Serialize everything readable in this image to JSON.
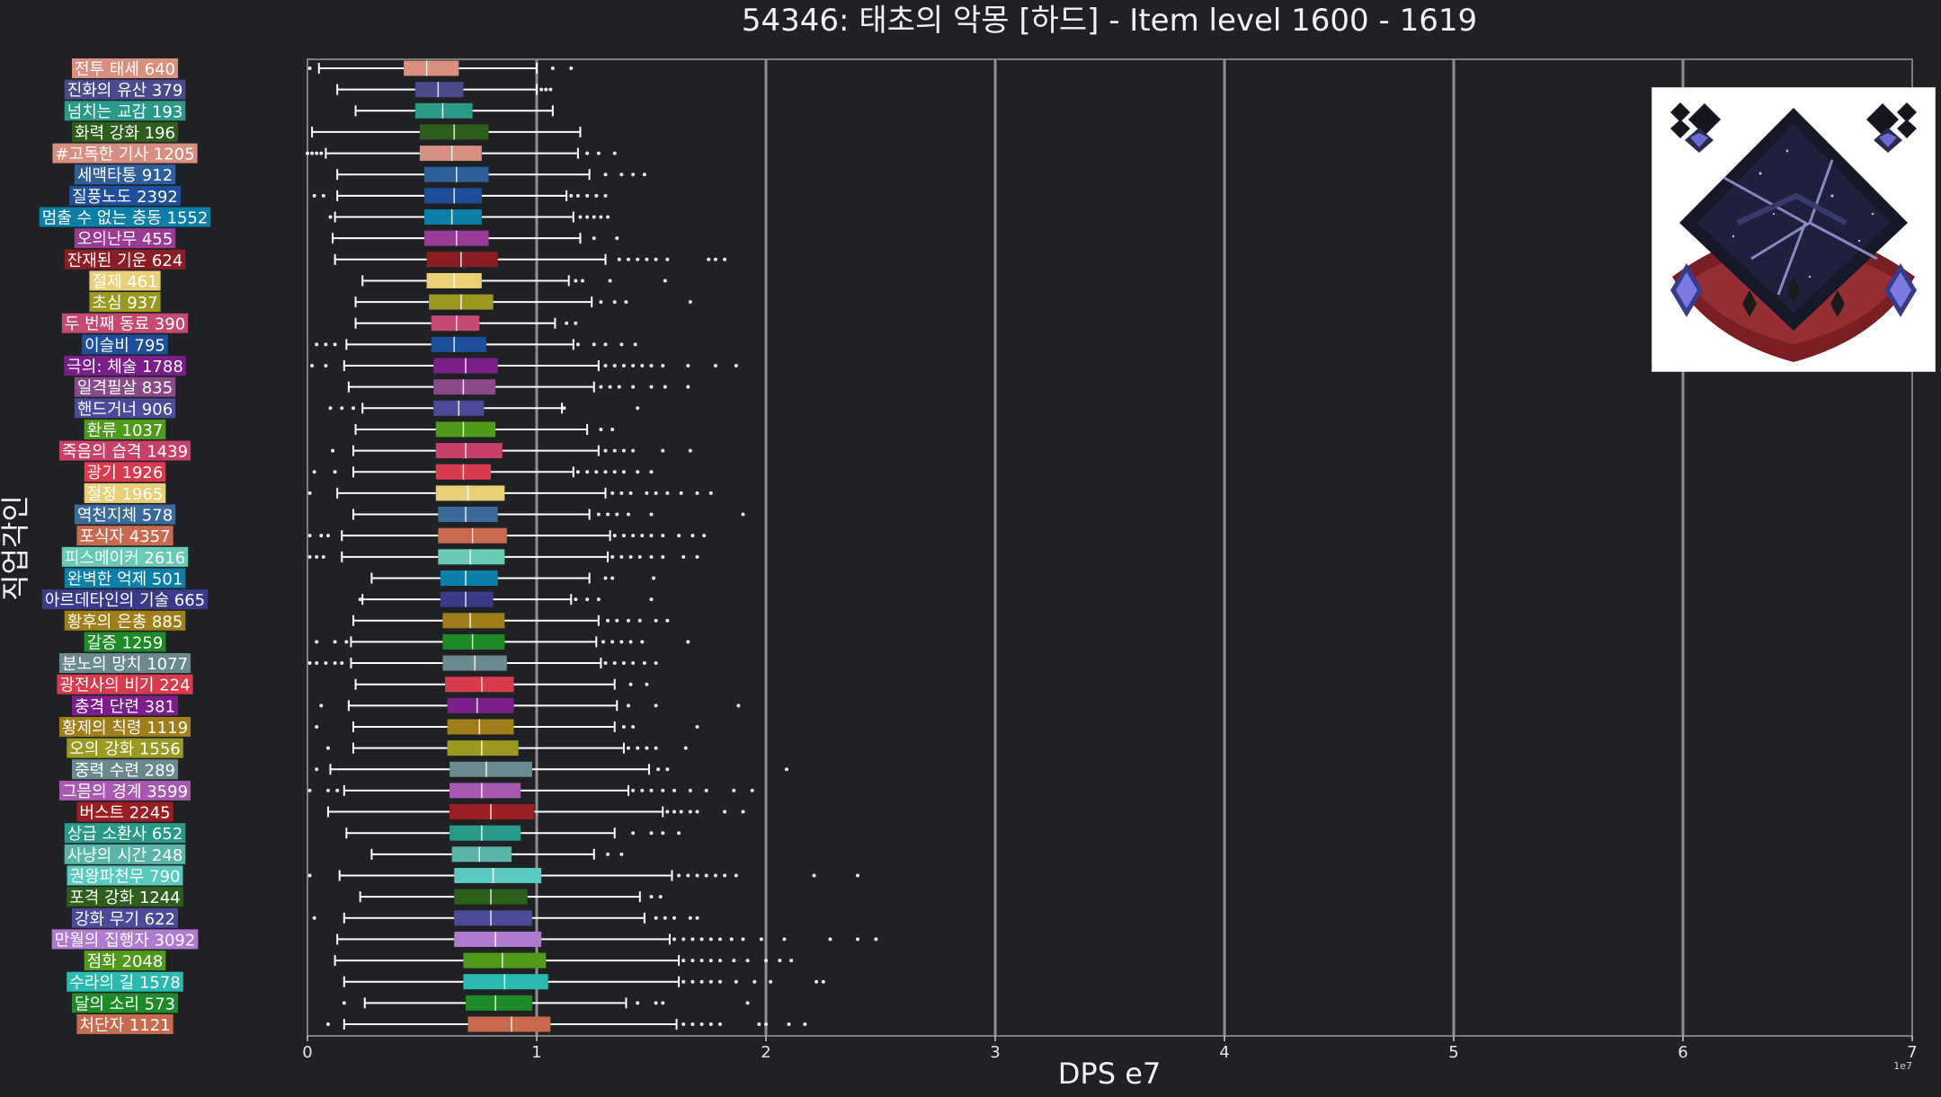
{
  "chart_data": {
    "type": "box",
    "orientation": "horizontal",
    "title": "54346: 태초의 악몽 [하드] - Item level 1600 - 1619",
    "xlabel": "DPS e7",
    "ylabel": "직업각인",
    "x_offset_label": "1e7",
    "xlim": [
      0,
      7
    ],
    "xticks": [
      "0",
      "1",
      "2",
      "3",
      "4",
      "5",
      "6",
      "7"
    ],
    "grid": "vertical",
    "background": "#202124",
    "categories": [
      {
        "label": "전투 태세 640",
        "color": "#d98e7e",
        "whisker": [
          0.05,
          1.0
        ],
        "box": [
          0.42,
          0.66
        ],
        "median": 0.52,
        "outliers": [
          0.01,
          1.07,
          1.15
        ]
      },
      {
        "label": "진화의 유산 379",
        "color": "#4b4b8c",
        "whisker": [
          0.13,
          1.0
        ],
        "box": [
          0.47,
          0.68
        ],
        "median": 0.57,
        "outliers": [
          1.02,
          1.04,
          1.06
        ]
      },
      {
        "label": "넘치는 교감 193",
        "color": "#2a9a88",
        "whisker": [
          0.21,
          1.07
        ],
        "box": [
          0.47,
          0.72
        ],
        "median": 0.59,
        "outliers": []
      },
      {
        "label": "화력 강화 196",
        "color": "#2e5e1c",
        "whisker": [
          0.02,
          1.19
        ],
        "box": [
          0.49,
          0.79
        ],
        "median": 0.64,
        "outliers": []
      },
      {
        "label": "#고독한 기사 1205",
        "color": "#d68f80",
        "whisker": [
          0.08,
          1.18
        ],
        "box": [
          0.49,
          0.76
        ],
        "median": 0.63,
        "outliers": [
          0.0,
          0.02,
          0.04,
          0.06,
          1.22,
          1.27,
          1.34
        ]
      },
      {
        "label": "세맥타통 912",
        "color": "#2e5f9a",
        "whisker": [
          0.13,
          1.23
        ],
        "box": [
          0.51,
          0.79
        ],
        "median": 0.65,
        "outliers": [
          1.3,
          1.37,
          1.42,
          1.47
        ]
      },
      {
        "label": "질풍노도 2392",
        "color": "#1f4f9b",
        "whisker": [
          0.13,
          1.13
        ],
        "box": [
          0.51,
          0.76
        ],
        "median": 0.64,
        "outliers": [
          0.03,
          0.07,
          1.15,
          1.18,
          1.22,
          1.26,
          1.3
        ]
      },
      {
        "label": "멈출 수 없는 충동 1552",
        "color": "#0b7fa8",
        "whisker": [
          0.12,
          1.16
        ],
        "box": [
          0.51,
          0.76
        ],
        "median": 0.63,
        "outliers": [
          0.1,
          1.19,
          1.22,
          1.25,
          1.28,
          1.31
        ]
      },
      {
        "label": "오의난무 455",
        "color": "#9a3b96",
        "whisker": [
          0.11,
          1.19
        ],
        "box": [
          0.51,
          0.79
        ],
        "median": 0.65,
        "outliers": [
          1.25,
          1.35
        ]
      },
      {
        "label": "잔재된 기운 624",
        "color": "#8b1e24",
        "whisker": [
          0.12,
          1.3
        ],
        "box": [
          0.52,
          0.83
        ],
        "median": 0.67,
        "outliers": [
          1.36,
          1.4,
          1.44,
          1.48,
          1.52,
          1.57,
          1.75,
          1.78,
          1.82
        ]
      },
      {
        "label": "절제 461",
        "color": "#e8cf78",
        "whisker": [
          0.24,
          1.14
        ],
        "box": [
          0.52,
          0.76
        ],
        "median": 0.64,
        "outliers": [
          1.17,
          1.2,
          1.32,
          1.56
        ]
      },
      {
        "label": "초심 937",
        "color": "#9a9a22",
        "whisker": [
          0.21,
          1.24
        ],
        "box": [
          0.53,
          0.81
        ],
        "median": 0.67,
        "outliers": [
          1.28,
          1.34,
          1.39,
          1.67
        ]
      },
      {
        "label": "두 번째 동료 390",
        "color": "#c44a72",
        "whisker": [
          0.21,
          1.08
        ],
        "box": [
          0.54,
          0.75
        ],
        "median": 0.65,
        "outliers": [
          1.13,
          1.17
        ]
      },
      {
        "label": "이슬비 795",
        "color": "#1f4f9b",
        "whisker": [
          0.17,
          1.16
        ],
        "box": [
          0.54,
          0.78
        ],
        "median": 0.64,
        "outliers": [
          0.04,
          0.08,
          0.12,
          1.18,
          1.25,
          1.3,
          1.37,
          1.43
        ]
      },
      {
        "label": "극의: 체술 1788",
        "color": "#7c1d8c",
        "whisker": [
          0.16,
          1.27
        ],
        "box": [
          0.55,
          0.83
        ],
        "median": 0.69,
        "outliers": [
          0.02,
          0.08,
          1.3,
          1.34,
          1.38,
          1.42,
          1.46,
          1.5,
          1.55,
          1.66,
          1.78,
          1.87
        ]
      },
      {
        "label": "일격필살 835",
        "color": "#8a4a8a",
        "whisker": [
          0.18,
          1.25
        ],
        "box": [
          0.55,
          0.82
        ],
        "median": 0.68,
        "outliers": [
          1.28,
          1.32,
          1.36,
          1.42,
          1.5,
          1.56,
          1.66
        ]
      },
      {
        "label": "핸드거너 906",
        "color": "#4b4b9a",
        "whisker": [
          0.24,
          1.11
        ],
        "box": [
          0.55,
          0.77
        ],
        "median": 0.66,
        "outliers": [
          0.1,
          0.15,
          0.2,
          1.12,
          1.44
        ]
      },
      {
        "label": "환류 1037",
        "color": "#4f9a1a",
        "whisker": [
          0.21,
          1.22
        ],
        "box": [
          0.56,
          0.82
        ],
        "median": 0.68,
        "outliers": [
          1.28,
          1.33
        ]
      },
      {
        "label": "죽음의 습격 1439",
        "color": "#c8406a",
        "whisker": [
          0.2,
          1.27
        ],
        "box": [
          0.56,
          0.85
        ],
        "median": 0.69,
        "outliers": [
          0.11,
          1.3,
          1.34,
          1.38,
          1.42,
          1.55,
          1.67
        ]
      },
      {
        "label": "광기 1926",
        "color": "#d83a4e",
        "whisker": [
          0.2,
          1.16
        ],
        "box": [
          0.56,
          0.8
        ],
        "median": 0.68,
        "outliers": [
          0.03,
          0.12,
          1.18,
          1.22,
          1.26,
          1.3,
          1.34,
          1.38,
          1.44,
          1.5
        ]
      },
      {
        "label": "절정 1965",
        "color": "#e8cf78",
        "whisker": [
          0.13,
          1.3
        ],
        "box": [
          0.56,
          0.86
        ],
        "median": 0.7,
        "outliers": [
          0.01,
          1.33,
          1.37,
          1.41,
          1.48,
          1.52,
          1.57,
          1.63,
          1.7,
          1.76
        ]
      },
      {
        "label": "역천지체 578",
        "color": "#3a6a9a",
        "whisker": [
          0.2,
          1.23
        ],
        "box": [
          0.57,
          0.83
        ],
        "median": 0.69,
        "outliers": [
          1.27,
          1.31,
          1.35,
          1.4,
          1.5,
          1.9
        ]
      },
      {
        "label": "포식자 4357",
        "color": "#c86a4e",
        "whisker": [
          0.15,
          1.32
        ],
        "box": [
          0.57,
          0.87
        ],
        "median": 0.72,
        "outliers": [
          0.01,
          0.06,
          0.09,
          1.34,
          1.38,
          1.42,
          1.46,
          1.5,
          1.55,
          1.62,
          1.68,
          1.73
        ]
      },
      {
        "label": "피스메이커 2616",
        "color": "#6acab8",
        "whisker": [
          0.15,
          1.31
        ],
        "box": [
          0.57,
          0.86
        ],
        "median": 0.71,
        "outliers": [
          0.01,
          0.04,
          0.07,
          1.33,
          1.37,
          1.41,
          1.45,
          1.5,
          1.55,
          1.64,
          1.7
        ]
      },
      {
        "label": "완벽한 억제 501",
        "color": "#0b7fa8",
        "whisker": [
          0.28,
          1.23
        ],
        "box": [
          0.58,
          0.83
        ],
        "median": 0.69,
        "outliers": [
          1.3,
          1.33,
          1.51
        ]
      },
      {
        "label": "아르데타인의 기술 665",
        "color": "#3a3a8a",
        "whisker": [
          0.24,
          1.15
        ],
        "box": [
          0.58,
          0.81
        ],
        "median": 0.69,
        "outliers": [
          0.23,
          1.17,
          1.22,
          1.27,
          1.5
        ]
      },
      {
        "label": "황후의 은총 885",
        "color": "#a07e1a",
        "whisker": [
          0.2,
          1.27
        ],
        "box": [
          0.59,
          0.86
        ],
        "median": 0.71,
        "outliers": [
          1.31,
          1.35,
          1.4,
          1.45,
          1.52,
          1.57
        ]
      },
      {
        "label": "갈증 1259",
        "color": "#1f8a28",
        "whisker": [
          0.19,
          1.26
        ],
        "box": [
          0.59,
          0.86
        ],
        "median": 0.72,
        "outliers": [
          0.04,
          0.12,
          0.17,
          1.29,
          1.33,
          1.37,
          1.41,
          1.46,
          1.66
        ]
      },
      {
        "label": "분노의 망치 1077",
        "color": "#6a8a90",
        "whisker": [
          0.19,
          1.28
        ],
        "box": [
          0.59,
          0.87
        ],
        "median": 0.73,
        "outliers": [
          0.01,
          0.04,
          0.08,
          0.12,
          0.15,
          1.3,
          1.34,
          1.38,
          1.42,
          1.47,
          1.52
        ]
      },
      {
        "label": "광전사의 비기 224",
        "color": "#d83a4e",
        "whisker": [
          0.21,
          1.34
        ],
        "box": [
          0.6,
          0.9
        ],
        "median": 0.76,
        "outliers": [
          1.41,
          1.48
        ]
      },
      {
        "label": "충격 단련 381",
        "color": "#7c1d8c",
        "whisker": [
          0.18,
          1.35
        ],
        "box": [
          0.61,
          0.9
        ],
        "median": 0.74,
        "outliers": [
          0.06,
          1.4,
          1.52,
          1.88
        ]
      },
      {
        "label": "황제의 칙령 1119",
        "color": "#a07e1a",
        "whisker": [
          0.2,
          1.34
        ],
        "box": [
          0.61,
          0.9
        ],
        "median": 0.75,
        "outliers": [
          0.04,
          1.38,
          1.42,
          1.7
        ]
      },
      {
        "label": "오의 강화 1556",
        "color": "#9a9a22",
        "whisker": [
          0.2,
          1.38
        ],
        "box": [
          0.61,
          0.92
        ],
        "median": 0.76,
        "outliers": [
          0.09,
          1.4,
          1.44,
          1.48,
          1.52,
          1.65
        ]
      },
      {
        "label": "중력 수련 289",
        "color": "#6a8a90",
        "whisker": [
          0.1,
          1.49
        ],
        "box": [
          0.62,
          0.98
        ],
        "median": 0.78,
        "outliers": [
          0.04,
          1.53,
          1.57,
          2.09
        ]
      },
      {
        "label": "그믐의 경계 3599",
        "color": "#a85ab0",
        "whisker": [
          0.16,
          1.4
        ],
        "box": [
          0.62,
          0.93
        ],
        "median": 0.76,
        "outliers": [
          0.01,
          0.09,
          0.13,
          1.42,
          1.46,
          1.5,
          1.55,
          1.6,
          1.67,
          1.74,
          1.86,
          1.94
        ]
      },
      {
        "label": "버스트 2245",
        "color": "#9a1e24",
        "whisker": [
          0.09,
          1.55
        ],
        "box": [
          0.62,
          0.99
        ],
        "median": 0.8,
        "outliers": [
          1.57,
          1.6,
          1.63,
          1.67,
          1.7,
          1.82,
          1.9
        ]
      },
      {
        "label": "상급 소환사 652",
        "color": "#2a9a88",
        "whisker": [
          0.17,
          1.34
        ],
        "box": [
          0.62,
          0.93
        ],
        "median": 0.76,
        "outliers": [
          1.42,
          1.5,
          1.55,
          1.62
        ]
      },
      {
        "label": "사냥의 시간 248",
        "color": "#5ab5a8",
        "whisker": [
          0.28,
          1.25
        ],
        "box": [
          0.63,
          0.89
        ],
        "median": 0.75,
        "outliers": [
          1.31,
          1.37
        ]
      },
      {
        "label": "권왕파천무 790",
        "color": "#5acac0",
        "whisker": [
          0.14,
          1.59
        ],
        "box": [
          0.64,
          1.02
        ],
        "median": 0.81,
        "outliers": [
          0.01,
          1.62,
          1.66,
          1.7,
          1.74,
          1.78,
          1.82,
          1.87,
          2.21,
          2.4
        ]
      },
      {
        "label": "포격 강화 1244",
        "color": "#2e5e1c",
        "whisker": [
          0.23,
          1.45
        ],
        "box": [
          0.64,
          0.96
        ],
        "median": 0.8,
        "outliers": [
          1.5,
          1.54
        ]
      },
      {
        "label": "강화 무기 622",
        "color": "#4b4b9a",
        "whisker": [
          0.16,
          1.47
        ],
        "box": [
          0.64,
          0.98
        ],
        "median": 0.8,
        "outliers": [
          0.03,
          1.52,
          1.56,
          1.6,
          1.67,
          1.7
        ]
      },
      {
        "label": "만월의 집행자 3092",
        "color": "#b07ad0",
        "whisker": [
          0.13,
          1.58
        ],
        "box": [
          0.64,
          1.02
        ],
        "median": 0.82,
        "outliers": [
          1.6,
          1.64,
          1.68,
          1.72,
          1.76,
          1.8,
          1.85,
          1.9,
          1.98,
          2.08,
          2.28,
          2.4,
          2.48
        ]
      },
      {
        "label": "점화 2048",
        "color": "#4f9a1a",
        "whisker": [
          0.12,
          1.62
        ],
        "box": [
          0.68,
          1.04
        ],
        "median": 0.85,
        "outliers": [
          1.64,
          1.68,
          1.72,
          1.76,
          1.8,
          1.86,
          1.92,
          2.0,
          2.06,
          2.11
        ]
      },
      {
        "label": "수라의 길 1578",
        "color": "#2abab0",
        "whisker": [
          0.16,
          1.62
        ],
        "box": [
          0.68,
          1.05
        ],
        "median": 0.86,
        "outliers": [
          1.64,
          1.68,
          1.72,
          1.76,
          1.8,
          1.87,
          1.95,
          2.02,
          2.22,
          2.25
        ]
      },
      {
        "label": "달의 소리 573",
        "color": "#1f8a28",
        "whisker": [
          0.25,
          1.39
        ],
        "box": [
          0.69,
          0.98
        ],
        "median": 0.82,
        "outliers": [
          0.16,
          1.44,
          1.52,
          1.55,
          1.92
        ]
      },
      {
        "label": "처단자 1121",
        "color": "#c86a4e",
        "whisker": [
          0.16,
          1.61
        ],
        "box": [
          0.7,
          1.06
        ],
        "median": 0.89,
        "outliers": [
          0.09,
          1.64,
          1.68,
          1.72,
          1.76,
          1.8,
          1.97,
          2.0,
          2.1,
          2.17
        ]
      }
    ]
  }
}
